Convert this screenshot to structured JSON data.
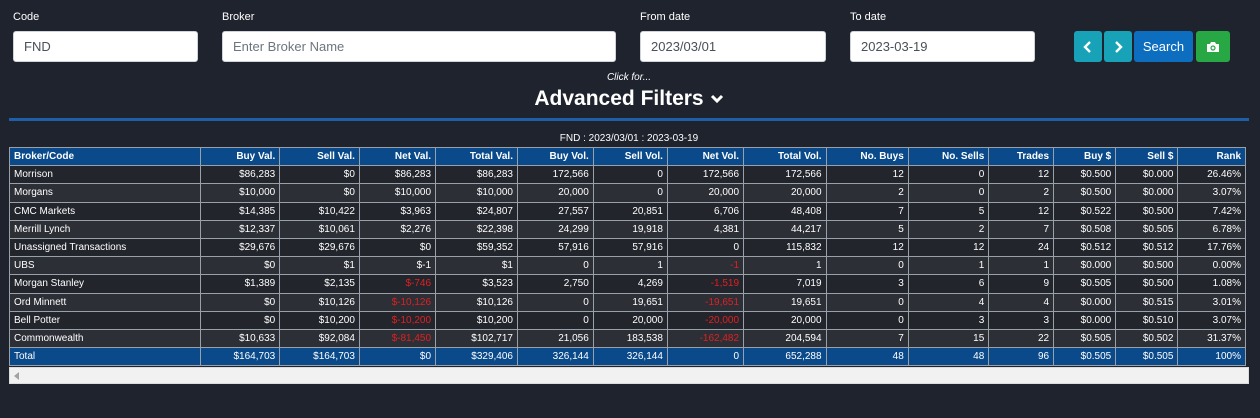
{
  "filters": {
    "code_label": "Code",
    "code_value": "FND",
    "broker_label": "Broker",
    "broker_placeholder": "Enter Broker Name",
    "from_label": "From date",
    "from_value": "2023/03/01",
    "to_label": "To date",
    "to_value": "2023-03-19",
    "search_label": "Search",
    "prev_icon": "chevron-left-icon",
    "next_icon": "chevron-right-icon",
    "camera_icon": "camera-icon"
  },
  "advanced": {
    "click_for": "Click for...",
    "title": "Advanced Filters"
  },
  "table": {
    "caption": "FND : 2023/03/01 : 2023-03-19",
    "columns": [
      "Broker/Code",
      "Buy Val.",
      "Sell Val.",
      "Net Val.",
      "Total Val.",
      "Buy Vol.",
      "Sell Vol.",
      "Net Vol.",
      "Total Vol.",
      "No. Buys",
      "No. Sells",
      "Trades",
      "Buy $",
      "Sell $",
      "Rank"
    ],
    "rows": [
      [
        "Morrison",
        "$86,283",
        "$0",
        "$86,283",
        "$86,283",
        "172,566",
        "0",
        "172,566",
        "172,566",
        "12",
        "0",
        "12",
        "$0.500",
        "$0.000",
        "26.46%"
      ],
      [
        "Morgans",
        "$10,000",
        "$0",
        "$10,000",
        "$10,000",
        "20,000",
        "0",
        "20,000",
        "20,000",
        "2",
        "0",
        "2",
        "$0.500",
        "$0.000",
        "3.07%"
      ],
      [
        "CMC Markets",
        "$14,385",
        "$10,422",
        "$3,963",
        "$24,807",
        "27,557",
        "20,851",
        "6,706",
        "48,408",
        "7",
        "5",
        "12",
        "$0.522",
        "$0.500",
        "7.42%"
      ],
      [
        "Merrill Lynch",
        "$12,337",
        "$10,061",
        "$2,276",
        "$22,398",
        "24,299",
        "19,918",
        "4,381",
        "44,217",
        "5",
        "2",
        "7",
        "$0.508",
        "$0.505",
        "6.78%"
      ],
      [
        "Unassigned Transactions",
        "$29,676",
        "$29,676",
        "$0",
        "$59,352",
        "57,916",
        "57,916",
        "0",
        "115,832",
        "12",
        "12",
        "24",
        "$0.512",
        "$0.512",
        "17.76%"
      ],
      [
        "UBS",
        "$0",
        "$1",
        "$-1",
        "$1",
        "0",
        "1",
        "-1",
        "1",
        "0",
        "1",
        "1",
        "$0.000",
        "$0.500",
        "0.00%"
      ],
      [
        "Morgan Stanley",
        "$1,389",
        "$2,135",
        "$-746",
        "$3,523",
        "2,750",
        "4,269",
        "-1,519",
        "7,019",
        "3",
        "6",
        "9",
        "$0.505",
        "$0.500",
        "1.08%"
      ],
      [
        "Ord Minnett",
        "$0",
        "$10,126",
        "$-10,126",
        "$10,126",
        "0",
        "19,651",
        "-19,651",
        "19,651",
        "0",
        "4",
        "4",
        "$0.000",
        "$0.515",
        "3.01%"
      ],
      [
        "Bell Potter",
        "$0",
        "$10,200",
        "$-10,200",
        "$10,200",
        "0",
        "20,000",
        "-20,000",
        "20,000",
        "0",
        "3",
        "3",
        "$0.000",
        "$0.510",
        "3.07%"
      ],
      [
        "Commonwealth",
        "$10,633",
        "$92,084",
        "$-81,450",
        "$102,717",
        "21,056",
        "183,538",
        "-162,482",
        "204,594",
        "7",
        "15",
        "22",
        "$0.505",
        "$0.502",
        "31.37%"
      ]
    ],
    "negative_cells": {
      "5": [
        7
      ],
      "6": [
        3,
        7
      ],
      "7": [
        3,
        7
      ],
      "8": [
        3,
        7
      ],
      "9": [
        3,
        7
      ]
    },
    "total": [
      "Total",
      "$164,703",
      "$164,703",
      "$0",
      "$329,406",
      "326,144",
      "326,144",
      "0",
      "652,288",
      "48",
      "48",
      "96",
      "$0.505",
      "$0.505",
      "100%"
    ]
  },
  "colors": {
    "background": "#1f232e",
    "header_bg": "#0a4a8a",
    "negative": "#e02020",
    "primary": "#0d6ebf",
    "info": "#17a2b8",
    "success": "#28a745"
  }
}
